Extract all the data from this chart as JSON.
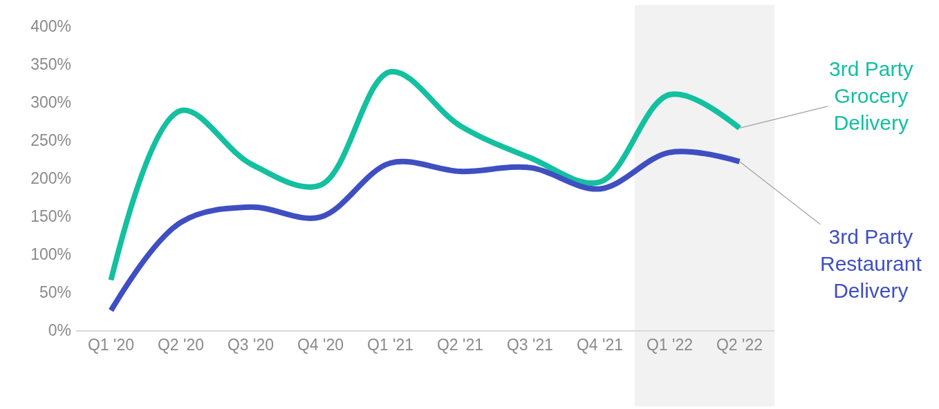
{
  "chart_data": {
    "type": "line",
    "categories": [
      "Q1 '20",
      "Q2 '20",
      "Q3 '20",
      "Q4 '20",
      "Q1 '21",
      "Q2 '21",
      "Q3 '21",
      "Q4 '21",
      "Q1 '22",
      "Q2 '22"
    ],
    "series": [
      {
        "name": "3rd Party Grocery Delivery",
        "color": "#13c0a0",
        "values": [
          66,
          289,
          219,
          191,
          340,
          269,
          227,
          195,
          310,
          266
        ]
      },
      {
        "name": "3rd Party Restaurant Delivery",
        "color": "#3f4fc2",
        "values": [
          26,
          142,
          162,
          149,
          220,
          209,
          214,
          186,
          234,
          222
        ]
      }
    ],
    "ylim": [
      0,
      400
    ],
    "yticks": [
      {
        "value": 0,
        "label": "0%"
      },
      {
        "value": 50,
        "label": "50%"
      },
      {
        "value": 100,
        "label": "100%"
      },
      {
        "value": 150,
        "label": "150%"
      },
      {
        "value": 200,
        "label": "200%"
      },
      {
        "value": 250,
        "label": "250%"
      },
      {
        "value": 300,
        "label": "300%"
      },
      {
        "value": 350,
        "label": "350%"
      },
      {
        "value": 400,
        "label": "400%"
      }
    ],
    "bands": [
      {
        "axis": "x",
        "from": "Q1 '22",
        "to": "Q2 '22",
        "color": "#f2f2f2"
      }
    ],
    "grid": false,
    "legend": false
  }
}
